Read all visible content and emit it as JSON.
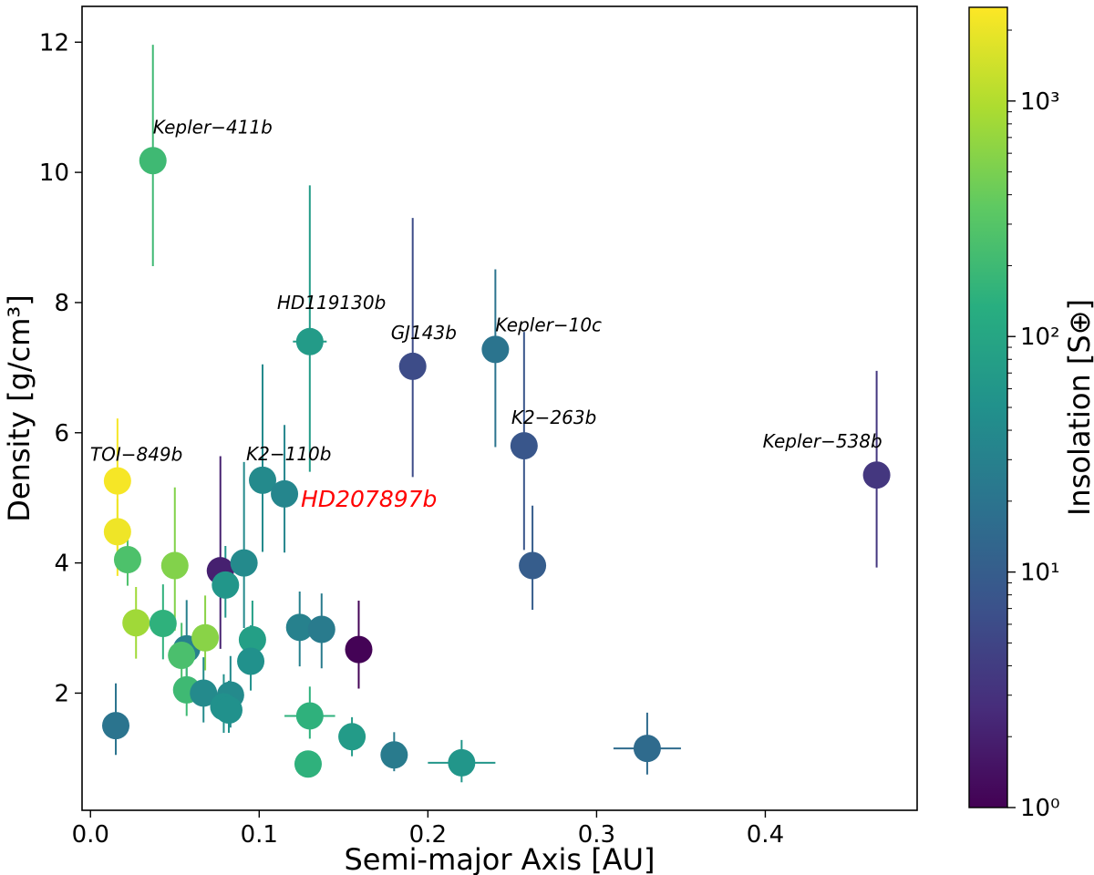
{
  "chart_data": {
    "type": "scatter",
    "xlabel": "Semi-major Axis [AU]",
    "ylabel": "Density [g/cm³]",
    "xlim": [
      -0.005,
      0.49
    ],
    "ylim": [
      0.2,
      12.55
    ],
    "x_ticks": [
      0.0,
      0.1,
      0.2,
      0.3,
      0.4
    ],
    "x_tick_labels": [
      "0.0",
      "0.1",
      "0.2",
      "0.3",
      "0.4"
    ],
    "y_ticks": [
      2,
      4,
      6,
      8,
      10,
      12
    ],
    "y_tick_labels": [
      "2",
      "4",
      "6",
      "8",
      "10",
      "12"
    ],
    "colorbar": {
      "label": "Insolation [S⊕]",
      "scale": "log",
      "range": [
        1,
        2500
      ],
      "colormap": "viridis",
      "ticks": [
        1,
        10,
        100,
        1000
      ],
      "tick_labels": [
        "10⁰",
        "10¹",
        "10²",
        "10³"
      ]
    },
    "points": [
      {
        "x": 0.037,
        "y": 10.18,
        "insolation": 200,
        "yerr": [
          1.62,
          1.78
        ],
        "xerr": 0,
        "label": "Kepler−411b"
      },
      {
        "x": 0.13,
        "y": 7.4,
        "insolation": 70,
        "yerr": [
          2.0,
          2.4
        ],
        "xerr": 0.01,
        "label": "HD119130b"
      },
      {
        "x": 0.191,
        "y": 7.02,
        "insolation": 6,
        "yerr": [
          1.7,
          2.28
        ],
        "xerr": 0,
        "label": "GJ143b"
      },
      {
        "x": 0.24,
        "y": 7.28,
        "insolation": 20,
        "yerr": [
          1.5,
          1.23
        ],
        "xerr": 0,
        "label": "Kepler−10c"
      },
      {
        "x": 0.257,
        "y": 5.8,
        "insolation": 8,
        "yerr": [
          1.6,
          1.75
        ],
        "xerr": 0,
        "label": "K2−263b"
      },
      {
        "x": 0.466,
        "y": 5.35,
        "insolation": 3.5,
        "yerr": [
          1.42,
          1.6
        ],
        "xerr": 0,
        "label": "Kepler−538b"
      },
      {
        "x": 0.016,
        "y": 5.26,
        "insolation": 2300,
        "yerr": [
          1.46,
          0.96
        ],
        "xerr": 0,
        "label": "TOI−849b"
      },
      {
        "x": 0.102,
        "y": 5.27,
        "insolation": 40,
        "yerr": [
          1.1,
          1.78
        ],
        "xerr": 0,
        "label": "K2−110b"
      },
      {
        "x": 0.115,
        "y": 5.06,
        "insolation": 35,
        "yerr": [
          0.9,
          1.06
        ],
        "xerr": 0,
        "label": "HD207897b",
        "highlight": true
      },
      {
        "x": 0.016,
        "y": 4.48,
        "insolation": 2100,
        "yerr": [
          0.5,
          0.5
        ],
        "xerr": 0
      },
      {
        "x": 0.022,
        "y": 4.05,
        "insolation": 260,
        "yerr": [
          0.4,
          0.5
        ],
        "xerr": 0
      },
      {
        "x": 0.05,
        "y": 3.96,
        "insolation": 550,
        "yerr": [
          1.0,
          1.2
        ],
        "xerr": 0
      },
      {
        "x": 0.077,
        "y": 3.88,
        "insolation": 2,
        "yerr": [
          1.2,
          1.76
        ],
        "xerr": 0
      },
      {
        "x": 0.08,
        "y": 3.66,
        "insolation": 60,
        "yerr": [
          0.5,
          0.6
        ],
        "xerr": 0
      },
      {
        "x": 0.091,
        "y": 4.0,
        "insolation": 40,
        "yerr": [
          1.0,
          1.55
        ],
        "xerr": 0
      },
      {
        "x": 0.262,
        "y": 3.96,
        "insolation": 10,
        "yerr": [
          0.68,
          0.92
        ],
        "xerr": 0
      },
      {
        "x": 0.027,
        "y": 3.08,
        "insolation": 800,
        "yerr": [
          0.55,
          0.55
        ],
        "xerr": 0.003
      },
      {
        "x": 0.043,
        "y": 3.07,
        "insolation": 150,
        "yerr": [
          0.55,
          0.6
        ],
        "xerr": 0
      },
      {
        "x": 0.057,
        "y": 2.68,
        "insolation": 30,
        "yerr": [
          0.5,
          0.75
        ],
        "xerr": 0
      },
      {
        "x": 0.054,
        "y": 2.58,
        "insolation": 250,
        "yerr": [
          0.45,
          0.5
        ],
        "xerr": 0.003
      },
      {
        "x": 0.068,
        "y": 2.85,
        "insolation": 600,
        "yerr": [
          0.5,
          0.65
        ],
        "xerr": 0.003
      },
      {
        "x": 0.096,
        "y": 2.82,
        "insolation": 80,
        "yerr": [
          0.5,
          0.6
        ],
        "xerr": 0
      },
      {
        "x": 0.095,
        "y": 2.49,
        "insolation": 50,
        "yerr": [
          0.45,
          0.55
        ],
        "xerr": 0
      },
      {
        "x": 0.124,
        "y": 3.01,
        "insolation": 30,
        "yerr": [
          0.6,
          0.55
        ],
        "xerr": 0.005
      },
      {
        "x": 0.137,
        "y": 2.98,
        "insolation": 25,
        "yerr": [
          0.6,
          0.55
        ],
        "xerr": 0.005
      },
      {
        "x": 0.159,
        "y": 2.67,
        "insolation": 1.05,
        "yerr": [
          0.6,
          0.75
        ],
        "xerr": 0
      },
      {
        "x": 0.057,
        "y": 2.05,
        "insolation": 200,
        "yerr": [
          0.4,
          0.5
        ],
        "xerr": 0.004
      },
      {
        "x": 0.067,
        "y": 2.0,
        "insolation": 40,
        "yerr": [
          0.45,
          0.55
        ],
        "xerr": 0
      },
      {
        "x": 0.083,
        "y": 1.97,
        "insolation": 40,
        "yerr": [
          0.5,
          0.6
        ],
        "xerr": 0
      },
      {
        "x": 0.079,
        "y": 1.79,
        "insolation": 50,
        "yerr": [
          0.4,
          0.5
        ],
        "xerr": 0
      },
      {
        "x": 0.082,
        "y": 1.74,
        "insolation": 50,
        "yerr": [
          0.35,
          0.45
        ],
        "xerr": 0
      },
      {
        "x": 0.015,
        "y": 1.5,
        "insolation": 20,
        "yerr": [
          0.45,
          0.65
        ],
        "xerr": 0
      },
      {
        "x": 0.13,
        "y": 1.65,
        "insolation": 150,
        "yerr": [
          0.35,
          0.45
        ],
        "xerr": 0.015
      },
      {
        "x": 0.129,
        "y": 0.91,
        "insolation": 150,
        "yerr": [
          0.0,
          0.0
        ],
        "xerr": 0.003
      },
      {
        "x": 0.155,
        "y": 1.33,
        "insolation": 70,
        "yerr": [
          0.3,
          0.3
        ],
        "xerr": 0
      },
      {
        "x": 0.18,
        "y": 1.05,
        "insolation": 25,
        "yerr": [
          0.25,
          0.35
        ],
        "xerr": 0
      },
      {
        "x": 0.22,
        "y": 0.93,
        "insolation": 60,
        "yerr": [
          0.3,
          0.35
        ],
        "xerr": 0.02
      },
      {
        "x": 0.33,
        "y": 1.15,
        "insolation": 15,
        "yerr": [
          0.4,
          0.55
        ],
        "xerr": 0.02
      }
    ]
  }
}
